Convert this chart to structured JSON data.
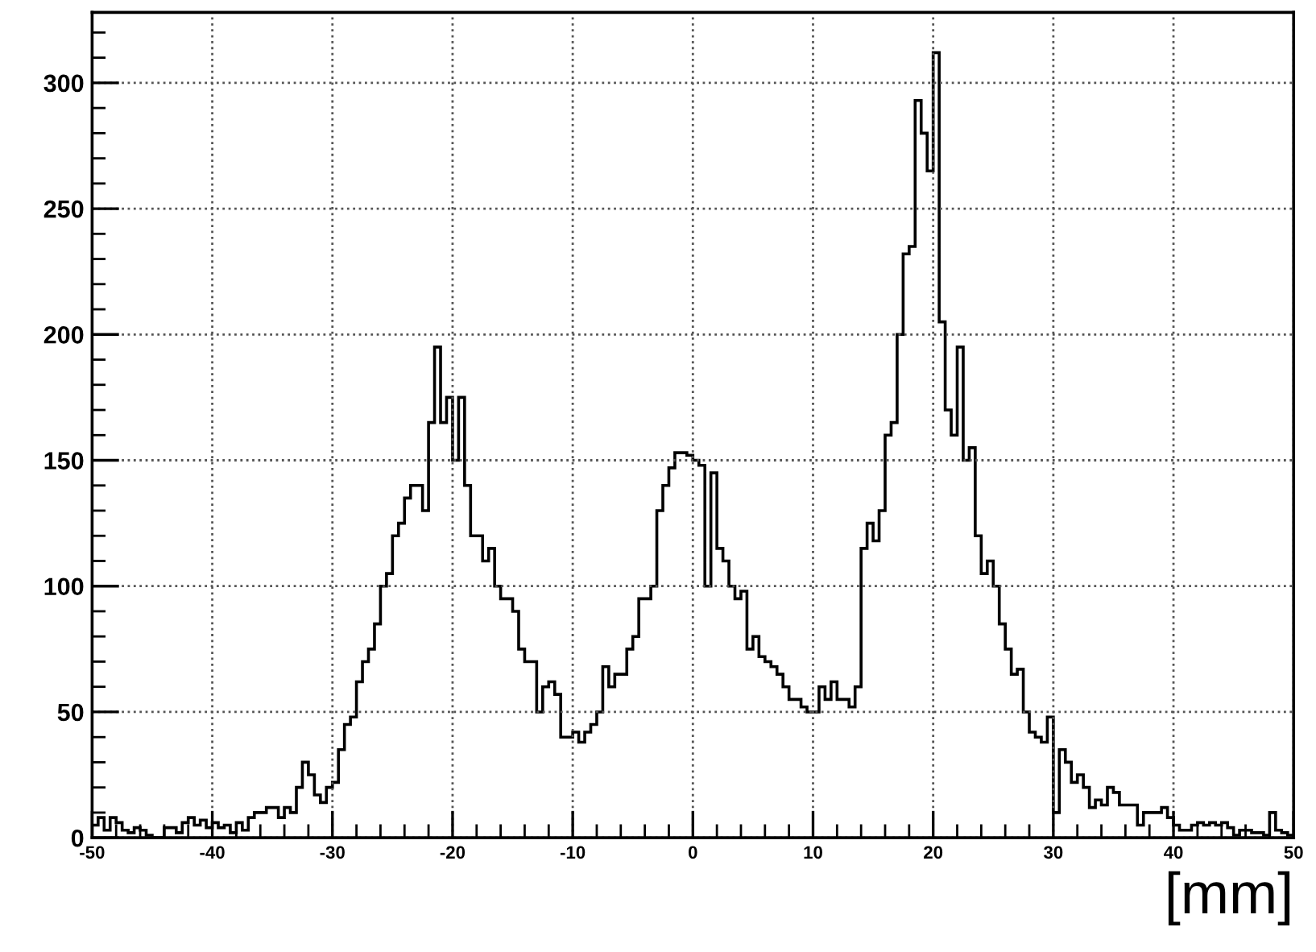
{
  "chart_data": {
    "type": "histogram",
    "xlabel": "[mm]",
    "bins": [
      -50,
      -49.5,
      -49,
      -48.5,
      -48,
      -47.5,
      -47,
      -46.5,
      -46,
      -45.5,
      -45,
      -44.5,
      -44,
      -43.5,
      -43,
      -42.5,
      -42,
      -41.5,
      -41,
      -40.5,
      -40,
      -39.5,
      -39,
      -38.5,
      -38,
      -37.5,
      -37,
      -36.5,
      -36,
      -35.5,
      -35,
      -34.5,
      -34,
      -33.5,
      -33,
      -32.5,
      -32,
      -31.5,
      -31,
      -30.5,
      -30,
      -29.5,
      -29,
      -28.5,
      -28,
      -27.5,
      -27,
      -26.5,
      -26,
      -25.5,
      -25,
      -24.5,
      -24,
      -23.5,
      -23,
      -22.5,
      -22,
      -21.5,
      -21,
      -20.5,
      -20,
      -19.5,
      -19,
      -18.5,
      -18,
      -17.5,
      -17,
      -16.5,
      -16,
      -15.5,
      -15,
      -14.5,
      -14,
      -13.5,
      -13,
      -12.5,
      -12,
      -11.5,
      -11,
      -10.5,
      -10,
      -9.5,
      -9,
      -8.5,
      -8,
      -7.5,
      -7,
      -6.5,
      -6,
      -5.5,
      -5,
      -4.5,
      -4,
      -3.5,
      -3,
      -2.5,
      -2,
      -1.5,
      -1,
      -0.5,
      0,
      0.5,
      1,
      1.5,
      2,
      2.5,
      3,
      3.5,
      4,
      4.5,
      5,
      5.5,
      6,
      6.5,
      7,
      7.5,
      8,
      8.5,
      9,
      9.5,
      10,
      10.5,
      11,
      11.5,
      12,
      12.5,
      13,
      13.5,
      14,
      14.5,
      15,
      15.5,
      16,
      16.5,
      17,
      17.5,
      18,
      18.5,
      19,
      19.5,
      20,
      20.5,
      21,
      21.5,
      22,
      22.5,
      23,
      23.5,
      24,
      24.5,
      25,
      25.5,
      26,
      26.5,
      27,
      27.5,
      28,
      28.5,
      29,
      29.5,
      30,
      30.5,
      31,
      31.5,
      32,
      32.5,
      33,
      33.5,
      34,
      34.5,
      35,
      35.5,
      36,
      36.5,
      37,
      37.5,
      38,
      38.5,
      39,
      39.5,
      40,
      40.5,
      41,
      41.5,
      42,
      42.5,
      43,
      43.5,
      44,
      44.5,
      45,
      45.5,
      46,
      46.5,
      47,
      47.5,
      48,
      48.5,
      49,
      49.5,
      50
    ],
    "values": [
      5,
      8,
      3,
      8,
      6,
      3,
      2,
      4,
      3,
      1,
      0,
      0,
      4,
      4,
      2,
      6,
      8,
      5,
      7,
      4,
      6,
      4,
      5,
      2,
      6,
      3,
      8,
      10,
      10,
      12,
      12,
      8,
      12,
      10,
      20,
      30,
      25,
      17,
      14,
      20,
      22,
      35,
      45,
      48,
      62,
      70,
      75,
      85,
      100,
      105,
      120,
      125,
      135,
      140,
      140,
      130,
      165,
      195,
      165,
      175,
      150,
      175,
      140,
      120,
      120,
      110,
      115,
      100,
      95,
      95,
      90,
      75,
      70,
      70,
      50,
      60,
      62,
      57,
      40,
      40,
      42,
      38,
      42,
      45,
      50,
      68,
      60,
      65,
      65,
      75,
      80,
      95,
      95,
      100,
      130,
      140,
      147,
      153,
      153,
      152,
      150,
      148,
      100,
      145,
      115,
      110,
      100,
      95,
      98,
      75,
      80,
      72,
      70,
      68,
      65,
      60,
      55,
      55,
      52,
      50,
      50,
      60,
      55,
      62,
      55,
      55,
      52,
      60,
      115,
      125,
      118,
      130,
      160,
      165,
      200,
      232,
      235,
      293,
      280,
      265,
      312,
      205,
      170,
      160,
      195,
      150,
      155,
      120,
      105,
      110,
      100,
      85,
      75,
      65,
      67,
      50,
      42,
      40,
      38,
      48,
      10,
      35,
      30,
      22,
      25,
      20,
      12,
      15,
      13,
      20,
      18,
      13,
      13,
      13,
      5,
      10,
      10,
      10,
      12,
      8,
      5,
      3,
      3,
      5,
      6,
      5,
      6,
      5,
      6,
      4,
      1,
      3,
      3,
      2,
      2,
      1,
      10,
      3,
      2,
      1
    ],
    "color": "#000000",
    "xlim": [
      -50,
      50
    ],
    "xticks": [
      -50,
      -40,
      -30,
      -20,
      -10,
      0,
      10,
      20,
      30,
      40,
      50
    ],
    "ylim": [
      0,
      328
    ],
    "yticks": [
      0,
      50,
      100,
      150,
      200,
      250,
      300
    ],
    "grid": true
  }
}
